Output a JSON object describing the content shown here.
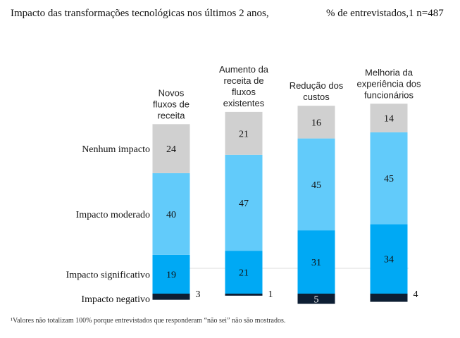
{
  "header": {
    "title": "Impacto das transformações tecnológicas nos últimos 2 anos,",
    "subtitle": "% de entrevistados,1 n=487"
  },
  "footnote": "¹Valores não totalizam 100% porque entrevistados que responderam “não sei” não são mostrados.",
  "colors": {
    "significant": "#00a9f4",
    "moderate": "#62cbfa",
    "none": "#d0d0d0",
    "negative": "#0d1e33",
    "gridline": "#dddddd"
  },
  "chart_data": {
    "type": "bar",
    "stacked": true,
    "orientation": "vertical",
    "categories": [
      "Novos fluxos de receita",
      "Aumento da receita de fluxos existentes",
      "Redução dos custos",
      "Melhoria da experiência dos funcionários"
    ],
    "category_lines": [
      [
        "Novos",
        "fluxos de",
        "receita"
      ],
      [
        "Aumento da",
        "receita de",
        "fluxos",
        "existentes"
      ],
      [
        "Redução dos",
        "custos"
      ],
      [
        "Melhoria da",
        "experiência dos",
        "funcionários"
      ]
    ],
    "series": [
      {
        "name": "Impacto significativo",
        "values": [
          19,
          21,
          31,
          34
        ],
        "color": "#00a9f4"
      },
      {
        "name": "Impacto moderado",
        "values": [
          40,
          47,
          45,
          45
        ],
        "color": "#62cbfa"
      },
      {
        "name": "Nenhum impacto",
        "values": [
          24,
          21,
          16,
          14
        ],
        "color": "#d0d0d0"
      },
      {
        "name": "Impacto negativo",
        "values": [
          3,
          1,
          5,
          4
        ],
        "color": "#0d1e33"
      }
    ],
    "negative_series": "Impacto negativo",
    "legend": "left, aligned with segments",
    "grid": false
  }
}
